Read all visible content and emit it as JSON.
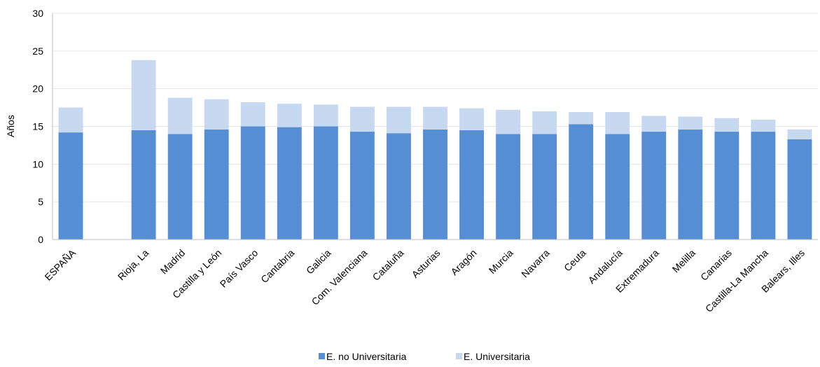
{
  "chart_data": {
    "type": "bar",
    "stacked": true,
    "ylabel": "Años",
    "xlabel": "",
    "ylim": [
      0,
      30
    ],
    "yticks": [
      0,
      5,
      10,
      15,
      20,
      25,
      30
    ],
    "grid": true,
    "legend_position": "bottom",
    "categories": [
      "ESPAÑA",
      "",
      "Rioja, La",
      "Madrid",
      "Castilla y León",
      "País Vasco",
      "Cantabria",
      "Galicia",
      "Com. Valenciana",
      "Cataluña",
      "Asturias",
      "Aragón",
      "Murcia",
      "Navarra",
      "Ceuta",
      "Andalucía",
      "Extremadura",
      "Melilla",
      "Canarias",
      "Castilla-La Mancha",
      "Balears, Illes"
    ],
    "series": [
      {
        "name": "E. no Universitaria",
        "color": "#558ED5",
        "values": [
          14.2,
          null,
          14.5,
          14.0,
          14.6,
          15.0,
          14.9,
          15.0,
          14.3,
          14.1,
          14.6,
          14.5,
          14.0,
          14.0,
          15.3,
          14.0,
          14.3,
          14.6,
          14.3,
          14.3,
          13.3
        ]
      },
      {
        "name": "E. Universitaria",
        "color": "#C6D9F1",
        "values": [
          3.3,
          null,
          9.3,
          4.8,
          4.0,
          3.2,
          3.1,
          2.9,
          3.3,
          3.5,
          3.0,
          2.9,
          3.2,
          3.0,
          1.6,
          2.9,
          2.1,
          1.7,
          1.8,
          1.6,
          1.3
        ]
      }
    ]
  }
}
